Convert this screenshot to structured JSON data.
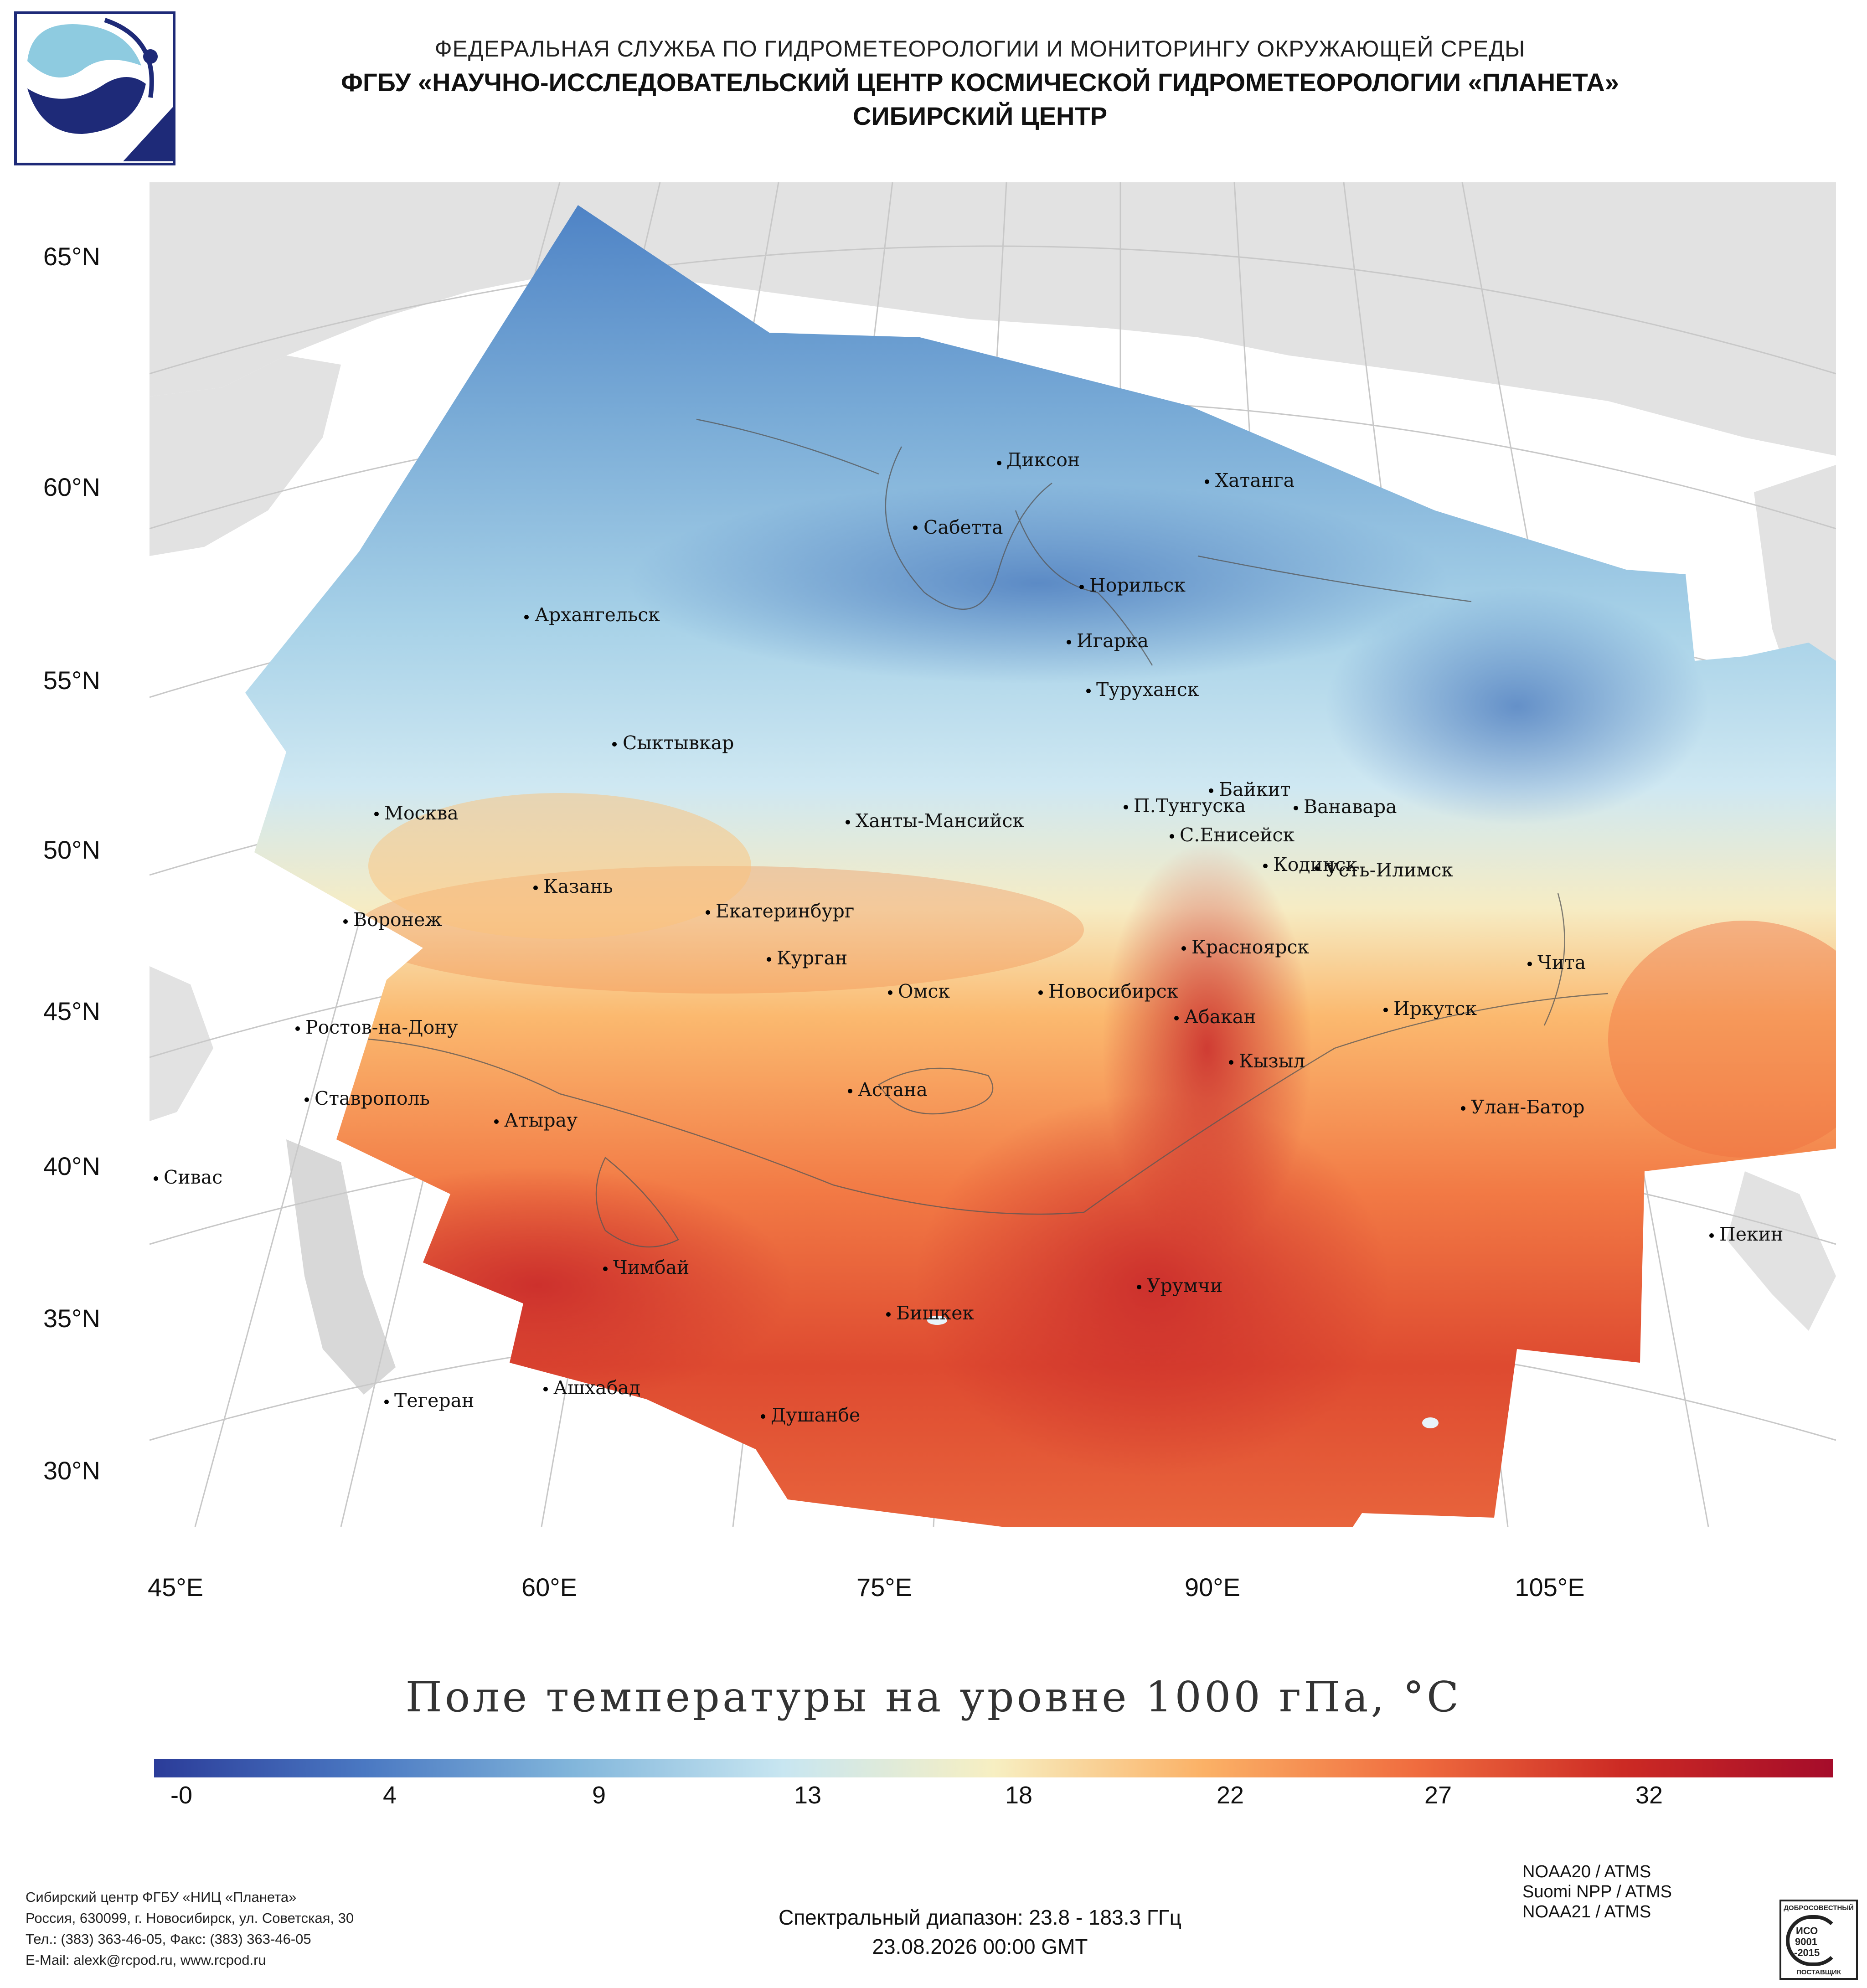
{
  "header": {
    "line1": "ФЕДЕРАЛЬНАЯ СЛУЖБА ПО ГИДРОМЕТЕОРОЛОГИИ И МОНИТОРИНГУ ОКРУЖАЮЩЕЙ СРЕДЫ",
    "line2": "ФГБУ «НАУЧНО-ИССЛЕДОВАТЕЛЬСКИЙ ЦЕНТР КОСМИЧЕСКОЙ ГИДРОМЕТЕОРОЛОГИИ «ПЛАНЕТА»",
    "line3": "СИБИРСКИЙ ЦЕНТР"
  },
  "map": {
    "lat_labels": [
      "65°N",
      "60°N",
      "55°N",
      "50°N",
      "45°N",
      "40°N",
      "35°N",
      "30°N"
    ],
    "lon_labels": [
      "45°E",
      "60°E",
      "75°E",
      "90°E",
      "105°E"
    ],
    "cities": [
      "Диксон",
      "Хатанга",
      "Сабетта",
      "Архангельск",
      "Норильск",
      "Игарка",
      "Туруханск",
      "Сыктывкар",
      "Байкит",
      "П.Тунгуска",
      "Ванавара",
      "Москва",
      "Ханты-Мансийск",
      "С.Енисейск",
      "Кодинск",
      "Усть-Илимск",
      "Казань",
      "Екатеринбург",
      "Воронеж",
      "Красноярск",
      "Курган",
      "Чита",
      "Омск",
      "Новосибирск",
      "Иркутск",
      "Ростов-на-Дону",
      "Абакан",
      "Кызыл",
      "Ставрополь",
      "Астана",
      "Улан-Батор",
      "Атырау",
      "Сивас",
      "Пекин",
      "Чимбай",
      "Урумчи",
      "Бишкек",
      "Ашхабад",
      "Тегеран",
      "Душанбе"
    ]
  },
  "title": "Поле температуры на уровне 1000 гПа, °C",
  "colorbar": {
    "ticks": [
      "-0",
      "4",
      "9",
      "13",
      "18",
      "22",
      "27",
      "32"
    ],
    "colors": [
      "#2b3c99",
      "#4a78c2",
      "#82b6db",
      "#c8e6f1",
      "#f7efc2",
      "#fbb166",
      "#f06d3f",
      "#cc2a24",
      "#a50c2a"
    ]
  },
  "footer": {
    "org_lines": [
      "Сибирский центр ФГБУ «НИЦ «Планета»",
      "Россия, 630099, г. Новосибирск, ул. Советская, 30",
      "Тел.: (383) 363-46-05, Факс: (383) 363-46-05",
      "E-Mail: alexk@rcpod.ru, www.rcpod.ru"
    ],
    "spectral": "Спектральный диапазон: 23.8 - 183.3 ГГц",
    "datetime": "23.08.2026 00:00 GMT",
    "satellites": [
      "NOAA20 / ATMS",
      "Suomi NPP / ATMS",
      "NOAA21 / ATMS"
    ],
    "badge": {
      "top": "ДОБРОСОВЕСТНЫЙ",
      "iso1": "ИСО",
      "iso2": "9001",
      "iso3": "-2015",
      "bottom": "ПОСТАВЩИК"
    }
  }
}
